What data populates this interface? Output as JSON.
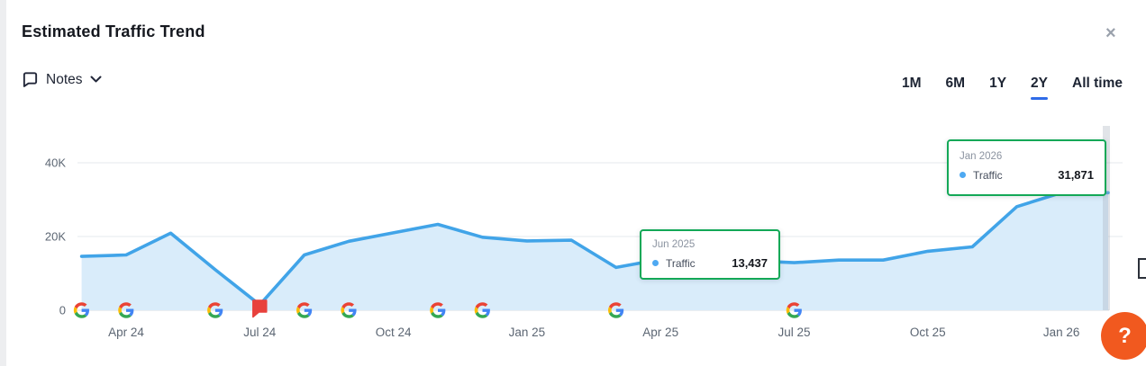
{
  "header": {
    "title": "Estimated Traffic Trend",
    "close_glyph": "×"
  },
  "toolbar": {
    "notes_label": "Notes"
  },
  "range_selector": {
    "options": [
      {
        "label": "1M",
        "selected": false
      },
      {
        "label": "6M",
        "selected": false
      },
      {
        "label": "1Y",
        "selected": false
      },
      {
        "label": "2Y",
        "selected": true
      },
      {
        "label": "All time",
        "selected": false
      }
    ]
  },
  "colors": {
    "line": "#41a4e8",
    "fill": "#d9ecfa",
    "tooltip_border": "#13a857",
    "tooltip_dot": "#4ea9f2",
    "flag": "#e8413c",
    "range_underline": "#2f6be8",
    "help_button": "#f1591f",
    "google_g": [
      "#EA4335",
      "#4285F4",
      "#FBBC05",
      "#34A853"
    ]
  },
  "chart_data": {
    "type": "area",
    "title": "Estimated Traffic Trend",
    "x": [
      "Mar 24",
      "Apr 24",
      "May 24",
      "Jun 24",
      "Jul 24",
      "Aug 24",
      "Sep 24",
      "Oct 24",
      "Nov 24",
      "Dec 24",
      "Jan 25",
      "Feb 25",
      "Mar 25",
      "Apr 25",
      "May 25",
      "Jun 25",
      "Jul 25",
      "Aug 25",
      "Sep 25",
      "Oct 25",
      "Nov 25",
      "Dec 25",
      "Jan 26"
    ],
    "series": [
      {
        "name": "Traffic",
        "values": [
          14600,
          15000,
          20900,
          11000,
          1500,
          15000,
          18700,
          21000,
          23300,
          19800,
          18800,
          19000,
          11600,
          13800,
          12600,
          13437,
          12900,
          13600,
          13600,
          16000,
          17200,
          28100,
          31871
        ]
      }
    ],
    "ylim": [
      0,
      45000
    ],
    "yticks": [
      {
        "label": "0",
        "value": 0
      },
      {
        "label": "20K",
        "value": 20000
      },
      {
        "label": "40K",
        "value": 40000
      }
    ],
    "xticks": [
      {
        "label": "Apr 24",
        "index": 1
      },
      {
        "label": "Jul 24",
        "index": 4
      },
      {
        "label": "Oct 24",
        "index": 7
      },
      {
        "label": "Jan 25",
        "index": 10
      },
      {
        "label": "Apr 25",
        "index": 13
      },
      {
        "label": "Jul 25",
        "index": 16
      },
      {
        "label": "Oct 25",
        "index": 19
      },
      {
        "label": "Jan 26",
        "index": 22
      }
    ],
    "grid": "horizontal",
    "legend_position": "none",
    "annotations": {
      "google_update_icons_at": [
        "Mar 24",
        "Apr 24",
        "Jun 24",
        "Aug 24",
        "Sep 24",
        "Nov 24",
        "Dec 24",
        "Mar 25",
        "Jul 25"
      ],
      "flag_at": "Jul 24"
    },
    "tooltips": [
      {
        "date": "Jun 2025",
        "series": "Traffic",
        "value": "13,437"
      },
      {
        "date": "Jan 2026",
        "series": "Traffic",
        "value": "31,871"
      }
    ]
  },
  "help_button": {
    "label": "?"
  }
}
